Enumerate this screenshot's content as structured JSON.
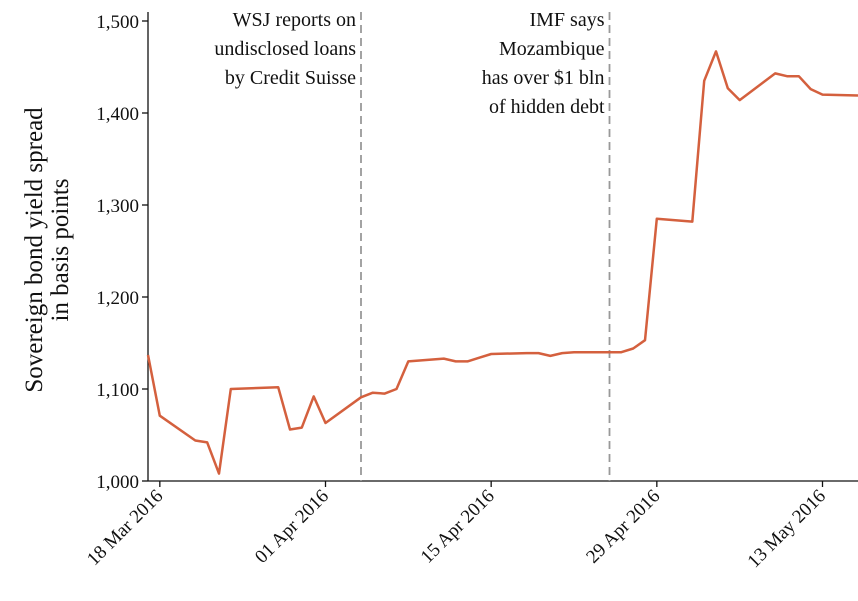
{
  "chart_data": {
    "type": "line",
    "y_label": [
      "Sovereign bond yield spread",
      "in basis points"
    ],
    "x": [
      "2016-03-17",
      "2016-03-18",
      "2016-03-21",
      "2016-03-22",
      "2016-03-23",
      "2016-03-24",
      "2016-03-28",
      "2016-03-29",
      "2016-03-30",
      "2016-03-31",
      "2016-04-01",
      "2016-04-04",
      "2016-04-05",
      "2016-04-06",
      "2016-04-07",
      "2016-04-08",
      "2016-04-11",
      "2016-04-12",
      "2016-04-13",
      "2016-04-14",
      "2016-04-15",
      "2016-04-18",
      "2016-04-19",
      "2016-04-20",
      "2016-04-21",
      "2016-04-22",
      "2016-04-25",
      "2016-04-26",
      "2016-04-27",
      "2016-04-28",
      "2016-04-29",
      "2016-05-02",
      "2016-05-03",
      "2016-05-04",
      "2016-05-05",
      "2016-05-06",
      "2016-05-09",
      "2016-05-10",
      "2016-05-11",
      "2016-05-12",
      "2016-05-13",
      "2016-05-16"
    ],
    "series": [
      {
        "color": "#d4603e",
        "values": [
          1137,
          1071,
          1044,
          1042,
          1008,
          1100,
          1102,
          1056,
          1058,
          1092,
          1063,
          1091,
          1096,
          1095,
          1100,
          1130,
          1133,
          1130,
          1130,
          1134,
          1138,
          1139,
          1139,
          1136,
          1139,
          1140,
          1140,
          1140,
          1144,
          1153,
          1285,
          1282,
          1435,
          1467,
          1427,
          1414,
          1443,
          1440,
          1440,
          1426,
          1420,
          1419
        ]
      }
    ],
    "xlim": [
      "2016-03-17",
      "2016-05-16"
    ],
    "xticks": [
      {
        "value": "2016-03-18",
        "label": "18 Mar 2016"
      },
      {
        "value": "2016-04-01",
        "label": "01 Apr 2016"
      },
      {
        "value": "2016-04-15",
        "label": "15 Apr 2016"
      },
      {
        "value": "2016-04-29",
        "label": "29 Apr 2016"
      },
      {
        "value": "2016-05-13",
        "label": "13 May 2016"
      }
    ],
    "ylim": [
      1000,
      1500
    ],
    "yticks": [
      {
        "value": 1000,
        "label": "1,000"
      },
      {
        "value": 1100,
        "label": "1,100"
      },
      {
        "value": 1200,
        "label": "1,200"
      },
      {
        "value": 1300,
        "label": "1,300"
      },
      {
        "value": 1400,
        "label": "1,400"
      },
      {
        "value": 1500,
        "label": "1,500"
      }
    ],
    "annotations": [
      {
        "x": "2016-04-04",
        "text": [
          "WSJ reports on",
          "undisclosed loans",
          "by Credit Suisse"
        ]
      },
      {
        "x": "2016-04-25",
        "text": [
          "IMF says",
          "Mozambique",
          "has over $1 bln",
          "of hidden debt"
        ]
      }
    ]
  }
}
